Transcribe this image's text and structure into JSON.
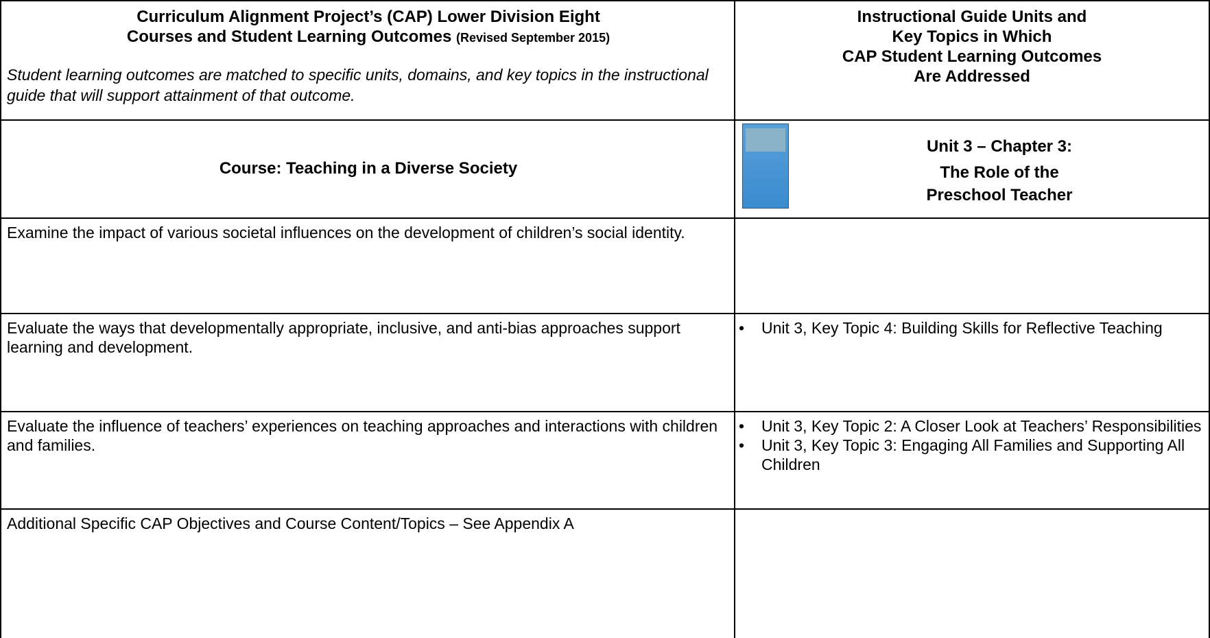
{
  "header": {
    "left": {
      "title_lines": [
        "Curriculum Alignment Project’s (CAP) Lower Division Eight",
        "Courses and Student Learning Outcomes"
      ],
      "revised": "(Revised September 2015)",
      "note": "Student learning outcomes are matched to specific units, domains, and key topics in the instructional guide that will support attainment of that outcome."
    },
    "right": {
      "title_lines": [
        "Instructional Guide Units and",
        "Key Topics in Which",
        "CAP Student Learning Outcomes",
        "Are Addressed"
      ]
    }
  },
  "course": {
    "title": "Course:  Teaching in a Diverse Society",
    "unit_title": "Unit 3 – Chapter 3:",
    "unit_subtitle_lines": [
      "The Role of the",
      "Preschool Teacher"
    ]
  },
  "rows": [
    {
      "outcome": "Examine the impact of various societal influences on the development of children’s social identity.",
      "topics": []
    },
    {
      "outcome": "Evaluate the ways that developmentally appropriate, inclusive, and anti-bias approaches support learning and development.",
      "topics": [
        "Unit 3, Key Topic 4: Building Skills for Reflective Teaching"
      ]
    },
    {
      "outcome": "Evaluate the influence of teachers’ experiences on teaching approaches and interactions with children and families.",
      "topics": [
        "Unit 3, Key Topic 2: A Closer Look at Teachers’ Responsibilities",
        "Unit 3, Key Topic 3: Engaging All Families and Supporting All Children"
      ]
    },
    {
      "outcome": "Additional Specific CAP Objectives and Course Content/Topics – See Appendix A",
      "topics": []
    }
  ]
}
